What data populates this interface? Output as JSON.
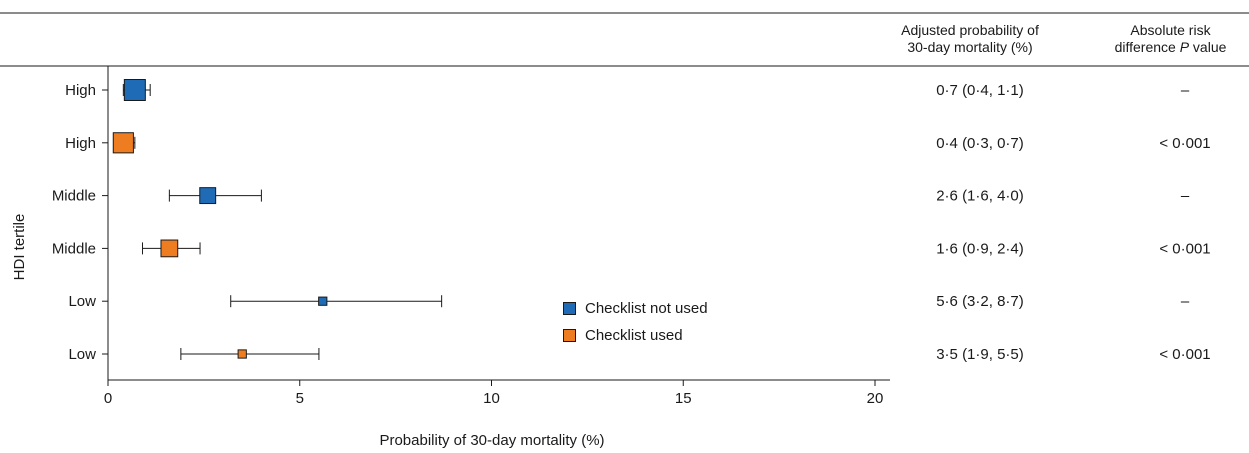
{
  "chart_data": {
    "type": "forest",
    "xlabel": "Probability of 30-day mortality (%)",
    "ylabel": "HDI tertile",
    "xlim": [
      0,
      20
    ],
    "xticks": [
      "0",
      "5",
      "10",
      "15",
      "20"
    ],
    "grid": false,
    "legend_position": "center",
    "legend": [
      {
        "label": "Checklist not used",
        "color": "#1f6bb5"
      },
      {
        "label": "Checklist used",
        "color": "#ee7d22"
      }
    ],
    "columns": {
      "estimate_header_line1": "Adjusted probability of",
      "estimate_header_line2": "30-day mortality (%)",
      "p_header_line1": "Absolute risk",
      "p_header_line2": "difference",
      "p_header_italic": "P",
      "p_header_suffix": " value"
    },
    "rows": [
      {
        "label": "High",
        "group": "Checklist not used",
        "estimate": 0.7,
        "lower": 0.4,
        "upper": 1.1,
        "marker_weight": 1.0,
        "text": "0·7 (0·4, 1·1)",
        "p": "–"
      },
      {
        "label": "High",
        "group": "Checklist used",
        "estimate": 0.4,
        "lower": 0.3,
        "upper": 0.7,
        "marker_weight": 0.95,
        "text": "0·4 (0·3, 0·7)",
        "p": "< 0·001"
      },
      {
        "label": "Middle",
        "group": "Checklist not used",
        "estimate": 2.6,
        "lower": 1.6,
        "upper": 4.0,
        "marker_weight": 0.7,
        "text": "2·6 (1·6, 4·0)",
        "p": "–"
      },
      {
        "label": "Middle",
        "group": "Checklist used",
        "estimate": 1.6,
        "lower": 0.9,
        "upper": 2.4,
        "marker_weight": 0.75,
        "text": "1·6 (0·9, 2·4)",
        "p": "< 0·001"
      },
      {
        "label": "Low",
        "group": "Checklist not used",
        "estimate": 5.6,
        "lower": 3.2,
        "upper": 8.7,
        "marker_weight": 0.25,
        "text": "5·6 (3·2, 8·7)",
        "p": "–"
      },
      {
        "label": "Low",
        "group": "Checklist used",
        "estimate": 3.5,
        "lower": 1.9,
        "upper": 5.5,
        "marker_weight": 0.25,
        "text": "3·5 (1·9, 5·5)",
        "p": "< 0·001"
      }
    ]
  }
}
